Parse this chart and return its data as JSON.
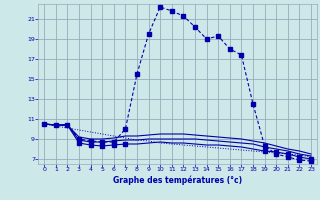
{
  "title": "Graphe des températures (°c)",
  "background_color": "#cce8e8",
  "grid_color": "#99aabb",
  "line_color": "#0000aa",
  "xlim": [
    -0.5,
    23.5
  ],
  "ylim": [
    6.5,
    22.5
  ],
  "xticks": [
    0,
    1,
    2,
    3,
    4,
    5,
    6,
    7,
    8,
    9,
    10,
    11,
    12,
    13,
    14,
    15,
    16,
    17,
    18,
    19,
    20,
    21,
    22,
    23
  ],
  "yticks": [
    7,
    9,
    11,
    13,
    15,
    17,
    19,
    21
  ],
  "hours": [
    0,
    1,
    2,
    3,
    4,
    5,
    6,
    7,
    8,
    9,
    10,
    11,
    12,
    13,
    14,
    15,
    16,
    17,
    18,
    19,
    20,
    21,
    22,
    23
  ],
  "temp_main": [
    10.5,
    10.4,
    10.4,
    9.0,
    8.8,
    8.7,
    8.7,
    10.0,
    15.5,
    19.5,
    22.2,
    21.8,
    21.3,
    20.2,
    19.0,
    19.3,
    18.0,
    17.4,
    12.5,
    8.3,
    7.5,
    7.2,
    6.9,
    6.8
  ],
  "temp_main_markers": [
    0,
    1,
    2,
    3,
    4,
    5,
    6,
    7,
    8,
    9,
    10,
    11,
    12,
    13,
    14,
    15,
    16,
    17,
    18,
    19,
    20,
    21,
    22,
    23
  ],
  "line_dotted": [
    10.5,
    10.3,
    10.1,
    9.9,
    9.7,
    9.5,
    9.3,
    9.1,
    8.9,
    8.8,
    8.6,
    8.5,
    8.4,
    8.3,
    8.2,
    8.1,
    8.0,
    7.9,
    7.8,
    7.7,
    7.6,
    7.5,
    7.4,
    7.2
  ],
  "line_mid1": [
    10.5,
    10.4,
    10.4,
    9.2,
    9.0,
    9.0,
    9.1,
    9.3,
    9.3,
    9.4,
    9.5,
    9.5,
    9.5,
    9.4,
    9.3,
    9.2,
    9.1,
    9.0,
    8.8,
    8.6,
    8.3,
    8.0,
    7.8,
    7.5
  ],
  "line_mid2": [
    10.5,
    10.4,
    10.4,
    8.9,
    8.7,
    8.7,
    8.8,
    8.9,
    8.9,
    9.0,
    9.0,
    9.0,
    9.0,
    9.0,
    8.9,
    8.8,
    8.7,
    8.6,
    8.5,
    8.2,
    8.0,
    7.8,
    7.5,
    7.3
  ],
  "line_bot": [
    10.5,
    10.4,
    10.4,
    8.6,
    8.4,
    8.3,
    8.4,
    8.5,
    8.5,
    8.6,
    8.7,
    8.6,
    8.6,
    8.5,
    8.4,
    8.4,
    8.3,
    8.2,
    8.0,
    7.8,
    7.7,
    7.5,
    7.2,
    7.0
  ]
}
